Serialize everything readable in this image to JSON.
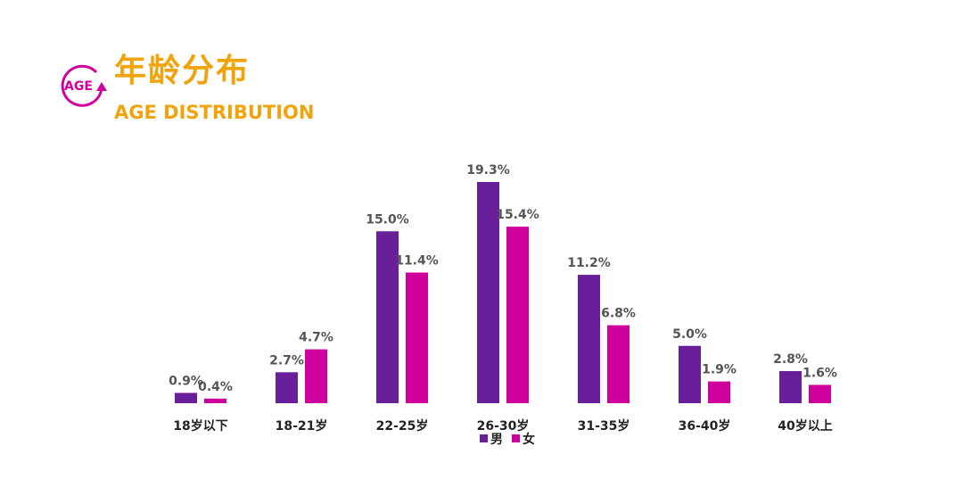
{
  "header": {
    "badge_text": "AGE",
    "title_cn": "年龄分布",
    "title_en": "AGE DISTRIBUTION"
  },
  "colors": {
    "accent": "#f0a30a",
    "male": "#6a1f9a",
    "female": "#d0009c"
  },
  "chart_data": {
    "type": "bar",
    "categories": [
      "18岁以下",
      "18-21岁",
      "22-25岁",
      "26-30岁",
      "31-35岁",
      "36-40岁",
      "40岁以上"
    ],
    "series": [
      {
        "name": "男",
        "values": [
          0.9,
          2.7,
          15.0,
          19.3,
          11.2,
          5.0,
          2.8
        ],
        "labels": [
          "0.9%",
          "2.7%",
          "15.0%",
          "19.3%",
          "11.2%",
          "5.0%",
          "2.8%"
        ],
        "color": "#6a1f9a"
      },
      {
        "name": "女",
        "values": [
          0.4,
          4.7,
          11.4,
          15.4,
          6.8,
          1.9,
          1.6
        ],
        "labels": [
          "0.4%",
          "4.7%",
          "11.4%",
          "15.4%",
          "6.8%",
          "1.9%",
          "1.6%"
        ],
        "color": "#d0009c"
      }
    ],
    "ylim": [
      0,
      20
    ],
    "grid": false,
    "legend_position": "bottom-center"
  }
}
